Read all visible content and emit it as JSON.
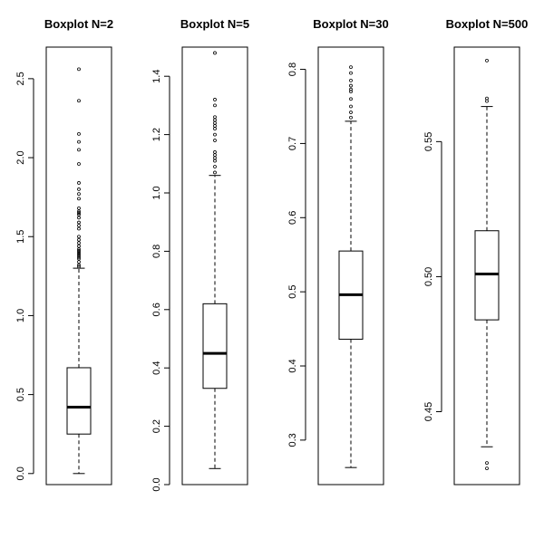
{
  "chart_data": [
    {
      "type": "boxplot",
      "title": "Boxplot N=2",
      "ylim": [
        -0.07,
        2.7
      ],
      "yticks": [
        "0.0",
        "0.5",
        "1.0",
        "1.5",
        "2.0",
        "2.5"
      ],
      "ytick_values": [
        0.0,
        0.5,
        1.0,
        1.5,
        2.0,
        2.5
      ],
      "box": {
        "min": 0.0,
        "q1": 0.25,
        "median": 0.42,
        "q3": 0.67,
        "max": 1.3
      },
      "outliers": [
        1.31,
        1.32,
        1.34,
        1.36,
        1.37,
        1.38,
        1.39,
        1.4,
        1.41,
        1.42,
        1.44,
        1.46,
        1.48,
        1.5,
        1.55,
        1.57,
        1.59,
        1.62,
        1.64,
        1.65,
        1.66,
        1.68,
        1.74,
        1.77,
        1.8,
        1.84,
        1.96,
        2.05,
        2.1,
        2.15,
        2.36,
        2.56
      ]
    },
    {
      "type": "boxplot",
      "title": "Boxplot N=5",
      "ylim": [
        0.0,
        1.5
      ],
      "yticks": [
        "0.0",
        "0.2",
        "0.4",
        "0.6",
        "0.8",
        "1.0",
        "1.2",
        "1.4"
      ],
      "ytick_values": [
        0.0,
        0.2,
        0.4,
        0.6,
        0.8,
        1.0,
        1.2,
        1.4
      ],
      "box": {
        "min": 0.055,
        "q1": 0.33,
        "median": 0.45,
        "q3": 0.62,
        "max": 1.06
      },
      "outliers": [
        1.07,
        1.09,
        1.11,
        1.12,
        1.13,
        1.14,
        1.18,
        1.2,
        1.22,
        1.23,
        1.24,
        1.25,
        1.26,
        1.3,
        1.32,
        1.48
      ]
    },
    {
      "type": "boxplot",
      "title": "Boxplot N=30",
      "ylim": [
        0.24,
        0.83
      ],
      "yticks": [
        "0.3",
        "0.4",
        "0.5",
        "0.6",
        "0.7",
        "0.8"
      ],
      "ytick_values": [
        0.3,
        0.4,
        0.5,
        0.6,
        0.7,
        0.8
      ],
      "box": {
        "min": 0.263,
        "q1": 0.436,
        "median": 0.496,
        "q3": 0.555,
        "max": 0.73
      },
      "outliers": [
        0.735,
        0.742,
        0.75,
        0.76,
        0.77,
        0.773,
        0.778,
        0.785,
        0.795,
        0.803
      ]
    },
    {
      "type": "boxplot",
      "title": "Boxplot N=500",
      "ylim": [
        0.423,
        0.585
      ],
      "yticks": [
        "0.45",
        "0.50",
        "0.55"
      ],
      "ytick_values": [
        0.45,
        0.5,
        0.55
      ],
      "box": {
        "min": 0.437,
        "q1": 0.484,
        "median": 0.501,
        "q3": 0.517,
        "max": 0.563
      },
      "outliers": [
        0.429,
        0.431,
        0.565,
        0.566,
        0.58
      ]
    }
  ]
}
